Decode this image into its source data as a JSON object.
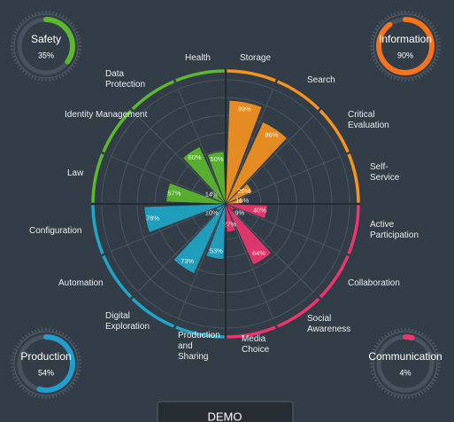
{
  "chart_data": [
    {
      "type": "polar_bar",
      "categories": [
        "Storage",
        "Search",
        "Critical Evaluation",
        "Self-Service",
        "Active Participation",
        "Collaboration",
        "Social Awareness",
        "Media Choice",
        "Production and Sharing",
        "Digital Exploration",
        "Automation",
        "Configuration",
        "Law",
        "Identity Management",
        "Data Protection",
        "Health"
      ],
      "values": [
        99,
        86,
        28,
        16,
        40,
        9,
        64,
        27,
        53,
        73,
        10,
        78,
        57,
        14,
        60,
        50
      ],
      "value_labels": [
        "99%",
        "86%",
        "28%",
        "16%",
        "40%",
        "9%",
        "64%",
        "27%",
        "53%",
        "73%",
        "10%",
        "78%",
        "57%",
        "14%",
        "60%",
        "50%"
      ],
      "colors": [
        "#f7931e",
        "#f7931e",
        "#f7931e",
        "#f7931e",
        "#f0356e",
        "#f0356e",
        "#f0356e",
        "#f0356e",
        "#1fa7c9",
        "#1fa7c9",
        "#1fa7c9",
        "#1fa7c9",
        "#5cb82e",
        "#5cb82e",
        "#5cb82e",
        "#5cb82e"
      ],
      "ylim": [
        0,
        100
      ]
    },
    {
      "type": "gauge",
      "title": "Safety",
      "value": 35,
      "value_label": "35%",
      "color": "#5cb82e"
    },
    {
      "type": "gauge",
      "title": "Information",
      "value": 90,
      "value_label": "90%",
      "color": "#f7731e"
    },
    {
      "type": "gauge",
      "title": "Production",
      "value": 54,
      "value_label": "54%",
      "color": "#1f9fd0"
    },
    {
      "type": "gauge",
      "title": "Communication",
      "value": 4,
      "value_label": "4%",
      "color": "#f0356e"
    }
  ],
  "button": {
    "label": "DEMO"
  }
}
